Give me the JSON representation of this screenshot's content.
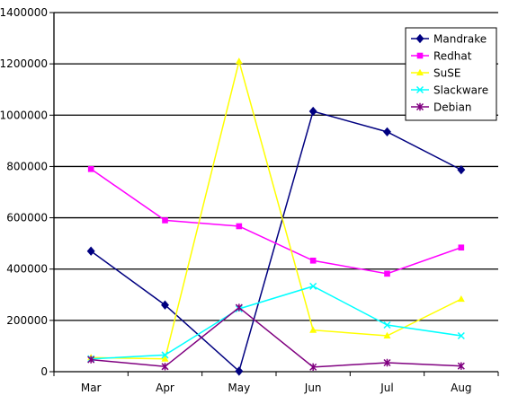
{
  "chart_data": {
    "type": "line",
    "title": "",
    "xlabel": "",
    "ylabel": "",
    "categories": [
      "Mar",
      "Apr",
      "May",
      "Jun",
      "Jul",
      "Aug"
    ],
    "ylim": [
      0,
      1400000
    ],
    "yticks": [
      0,
      200000,
      400000,
      600000,
      800000,
      1000000,
      1200000,
      1400000
    ],
    "grid": "horizontal",
    "legend_position": "top-right",
    "series": [
      {
        "name": "Mandrake",
        "color": "#000080",
        "marker": "diamond",
        "values": [
          470000,
          260000,
          2000,
          1015000,
          935000,
          787000
        ]
      },
      {
        "name": "Redhat",
        "color": "#ff00ff",
        "marker": "square",
        "values": [
          790000,
          590000,
          567000,
          433000,
          382000,
          484000
        ]
      },
      {
        "name": "SuSE",
        "color": "#ffff00",
        "marker": "triangle",
        "values": [
          55000,
          50000,
          1210000,
          162000,
          140000,
          283000
        ]
      },
      {
        "name": "Slackware",
        "color": "#00ffff",
        "marker": "x",
        "values": [
          50000,
          65000,
          245000,
          333000,
          182000,
          140000
        ]
      },
      {
        "name": "Debian",
        "color": "#800080",
        "marker": "star",
        "values": [
          47000,
          20000,
          250000,
          18000,
          35000,
          22000
        ]
      }
    ]
  }
}
